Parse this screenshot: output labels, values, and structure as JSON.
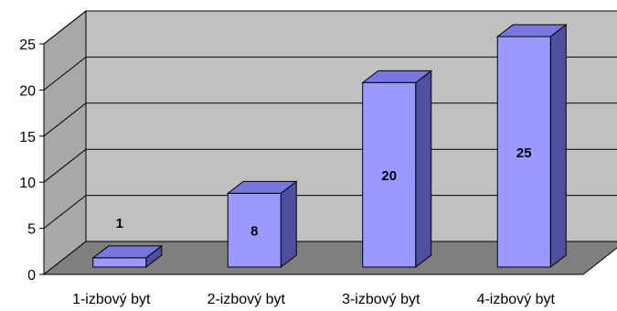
{
  "chart_data": {
    "type": "bar",
    "categories": [
      "1-izbový byt",
      "2-izbový byt",
      "3-izbový byt",
      "4-izbový byt"
    ],
    "values": [
      1,
      8,
      20,
      25
    ],
    "ylim": [
      0,
      25
    ],
    "yticks": [
      0,
      5,
      10,
      15,
      20,
      25
    ],
    "grid": true,
    "legend": "none",
    "style": "3d",
    "colors": {
      "bar_front": "#9999FF",
      "bar_top": "#7777DD",
      "bar_side": "#4F4F9F",
      "back_wall": "#C0C0C0",
      "side_wall": "#A8A8A8",
      "floor": "#7F7F7F",
      "gridline": "#000000"
    }
  }
}
